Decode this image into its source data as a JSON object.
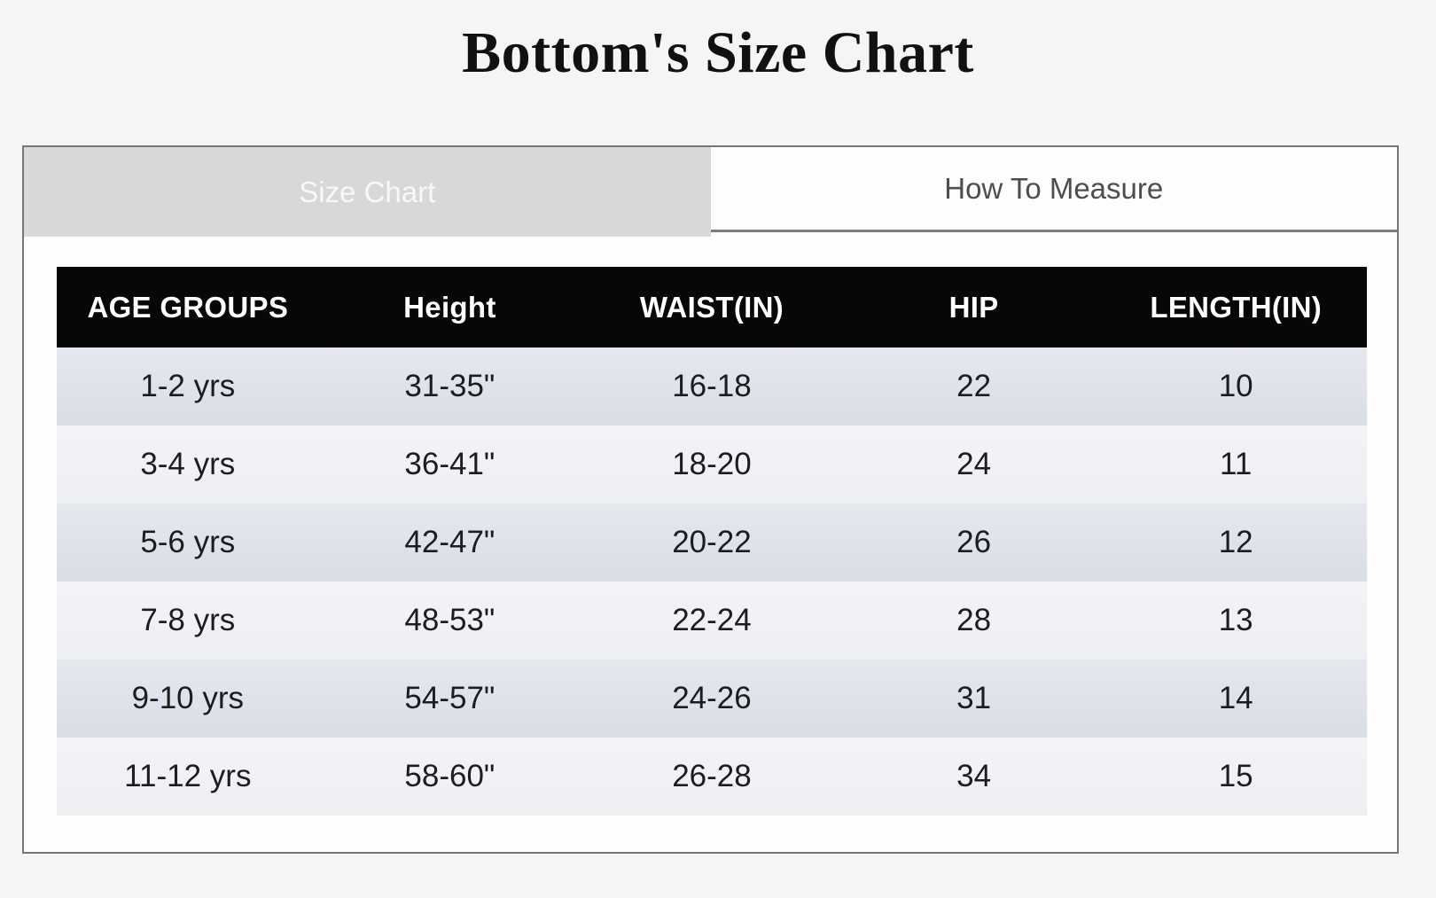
{
  "page_title": "Bottom's Size Chart",
  "tabs": {
    "size_chart_label": "Size Chart",
    "how_to_measure_label": "How To Measure",
    "active_tab": "Size Chart"
  },
  "colors": {
    "page_background": "#f6f5f5",
    "panel_border": "#767676",
    "active_tab_background": "#d8d8d8",
    "active_tab_text": "#f8f8f8",
    "inactive_tab_text": "#4d4d4d",
    "table_header_background": "#070707",
    "table_header_text": "#ffffff",
    "row_stripe_dark": "#dcdfe8",
    "row_stripe_light": "#f0f1f5"
  },
  "size_table": {
    "headers": [
      "AGE GROUPS",
      "Height",
      "WAIST(IN)",
      "HIP",
      "LENGTH(IN)"
    ],
    "rows": [
      [
        "1-2 yrs",
        "31-35\"",
        "16-18",
        "22",
        "10"
      ],
      [
        "3-4 yrs",
        "36-41\"",
        "18-20",
        "24",
        "11"
      ],
      [
        "5-6 yrs",
        "42-47\"",
        "20-22",
        "26",
        "12"
      ],
      [
        "7-8 yrs",
        "48-53\"",
        "22-24",
        "28",
        "13"
      ],
      [
        "9-10 yrs",
        "54-57\"",
        "24-26",
        "31",
        "14"
      ],
      [
        "11-12 yrs",
        "58-60\"",
        "26-28",
        "34",
        "15"
      ]
    ]
  }
}
